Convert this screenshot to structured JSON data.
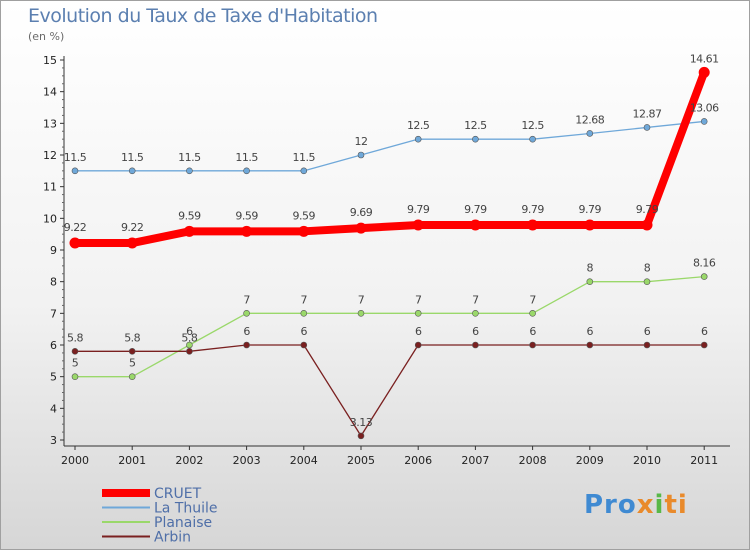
{
  "chart_data": {
    "type": "line",
    "title": "Evolution du Taux de Taxe d'Habitation",
    "subtitle": "(en %)",
    "x": [
      "2000",
      "2001",
      "2002",
      "2003",
      "2004",
      "2005",
      "2006",
      "2007",
      "2008",
      "2009",
      "2010",
      "2011"
    ],
    "ylim": [
      3,
      15
    ],
    "yticks": [
      3,
      4,
      5,
      6,
      7,
      8,
      9,
      10,
      11,
      12,
      13,
      14,
      15
    ],
    "grid": false,
    "legend_position": "bottom-left",
    "series": [
      {
        "name": "CRUET",
        "color": "#ff0000",
        "emphasis": true,
        "values": [
          9.22,
          9.22,
          9.59,
          9.59,
          9.59,
          9.69,
          9.79,
          9.79,
          9.79,
          9.79,
          9.79,
          14.61
        ],
        "labels": [
          "9.22",
          "9.22",
          "9.59",
          "9.59",
          "9.59",
          "9.69",
          "9.79",
          "9.79",
          "9.79",
          "9.79",
          "9.79",
          "14.61"
        ]
      },
      {
        "name": "La Thuile",
        "color": "#6fa8d9",
        "values": [
          11.5,
          11.5,
          11.5,
          11.5,
          11.5,
          12,
          12.5,
          12.5,
          12.5,
          12.68,
          12.87,
          13.06
        ],
        "labels": [
          "11.5",
          "11.5",
          "11.5",
          "11.5",
          "11.5",
          "12",
          "12.5",
          "12.5",
          "12.5",
          "12.68",
          "12.87",
          "13.06"
        ]
      },
      {
        "name": "Planaise",
        "color": "#9ad86a",
        "values": [
          5,
          5,
          6,
          7,
          7,
          7,
          7,
          7,
          7,
          8,
          8,
          8.16
        ],
        "labels": [
          "5",
          "5",
          "6",
          "7",
          "7",
          "7",
          "7",
          "7",
          "7",
          "8",
          "8",
          "8.16"
        ]
      },
      {
        "name": "Arbin",
        "color": "#7a2020",
        "values": [
          5.8,
          5.8,
          5.8,
          6,
          6,
          3.13,
          6,
          6,
          6,
          6,
          6,
          6
        ],
        "labels": [
          "5.8",
          "5.8",
          "5.8",
          "6",
          "6",
          "3.13",
          "6",
          "6",
          "6",
          "6",
          "6",
          "6"
        ]
      }
    ]
  },
  "logo": {
    "p1": "Pro",
    "p2": "x",
    "p3": "i",
    "p4": "ti"
  }
}
